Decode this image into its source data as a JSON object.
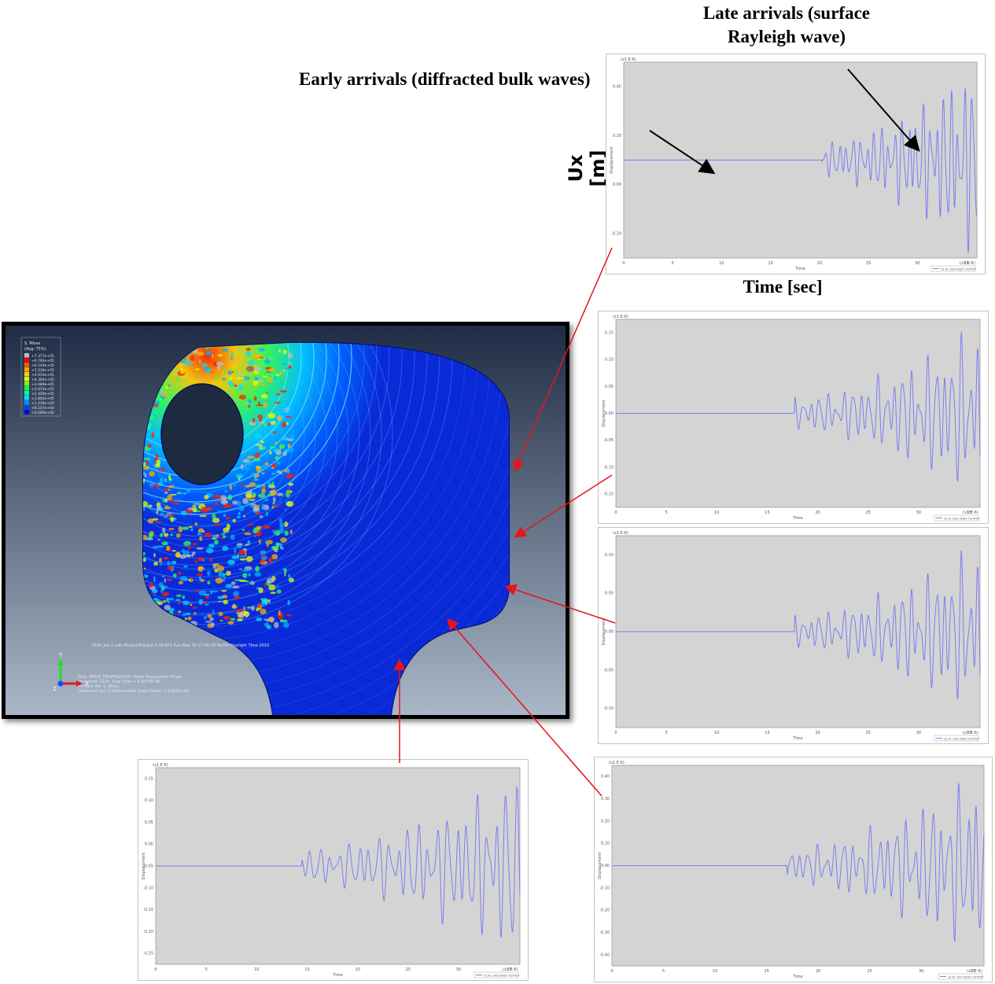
{
  "captions": {
    "late_line1": "Late arrivals (surface",
    "late_line2": "Rayleigh wave)",
    "early": "Early arrivals (diffracted bulk waves)",
    "ux_label": "Ux [m]",
    "time_label": "Time [sec]"
  },
  "plot_common": {
    "ylabel": "Displacement",
    "xlabel": "Time",
    "unit_tag": "(x1.E-6)",
    "xticks": [
      "0",
      "5",
      "10",
      "15",
      "20",
      "25",
      "30",
      "35"
    ]
  },
  "panels": [
    {
      "id": "top",
      "legend": "U1 N: 1004 NSET OUTPUT",
      "yticks": [
        "0.40",
        "0.20",
        "0.00",
        "-0.20"
      ],
      "onset": 0.56,
      "amp": 0.95
    },
    {
      "id": "mid1",
      "legend": "U1 N: 1001 NSET OUTPUT",
      "yticks": [
        "0.15",
        "0.10",
        "0.05",
        "0.00",
        "-0.05",
        "-0.10",
        "-0.15"
      ],
      "onset": 0.49,
      "amp": 0.9
    },
    {
      "id": "mid2",
      "legend": "U1 N: 1002 NSET OUTPUT",
      "yticks": [
        "0.10",
        "0.05",
        "0.00",
        "-0.05",
        "-0.10"
      ],
      "onset": 0.49,
      "amp": 0.88
    },
    {
      "id": "botright",
      "legend": "U1 N: 1003 NSET OUTPUT",
      "yticks": [
        "0.40",
        "0.30",
        "0.20",
        "0.10",
        "0.00",
        "-0.10",
        "-0.20",
        "-0.30",
        "-0.40"
      ],
      "onset": 0.47,
      "amp": 0.92
    },
    {
      "id": "botleft",
      "legend": "U1 N: 1005 NSET OUTPUT",
      "yticks": [
        "0.15",
        "0.10",
        "0.05",
        "0.00",
        "-0.05",
        "-0.10",
        "-0.15",
        "-0.20",
        "-0.25"
      ],
      "onset": 0.4,
      "amp": 0.9
    }
  ],
  "simulation": {
    "legend_title": "S, Mises",
    "legend_subtitle": "(Avg: 75%)",
    "legend_values": [
      "+7.377e+05",
      "+6.764e+05",
      "+6.149e+05",
      "+5.534e+05",
      "+4.919e+05",
      "+4.304e+05",
      "+3.689e+05",
      "+3.074e+05",
      "+2.459e+05",
      "+1.844e+05",
      "+1.230e+05",
      "+6.147e+04",
      "+0.000e+00"
    ],
    "legend_colors": [
      "#bdbdbd",
      "#ff0000",
      "#ff5a00",
      "#ffa500",
      "#ffd400",
      "#d9ff00",
      "#7dff00",
      "#00ff4a",
      "#00ffb0",
      "#00e0ff",
      "#0094ff",
      "#0040ff",
      "#0000ff"
    ],
    "odb_line": "ODB: Job-1.odb    Abaqus/Explicit 6.10-EF1    Sun May 30 17:56:38 Pacific Daylight Time 2010",
    "step_line": "Step: WAVE_PROPAGATION, Wave Propagation Phase",
    "increment_line": "Increment    1226: Step Time =    8.9270E-06",
    "primary_line": "Primary Var: S, Mises",
    "deformed_line": "Deformed Var: U   Deformation Scale Factor: +1.000e+00",
    "axis_x": "X",
    "axis_y": "Y",
    "axis_z": "Z",
    "colors": {
      "bg_top": "#1f2c45",
      "bg_bottom": "#a9b7c7",
      "body": "#0a2ad8",
      "hole": "#1e2a40"
    }
  }
}
